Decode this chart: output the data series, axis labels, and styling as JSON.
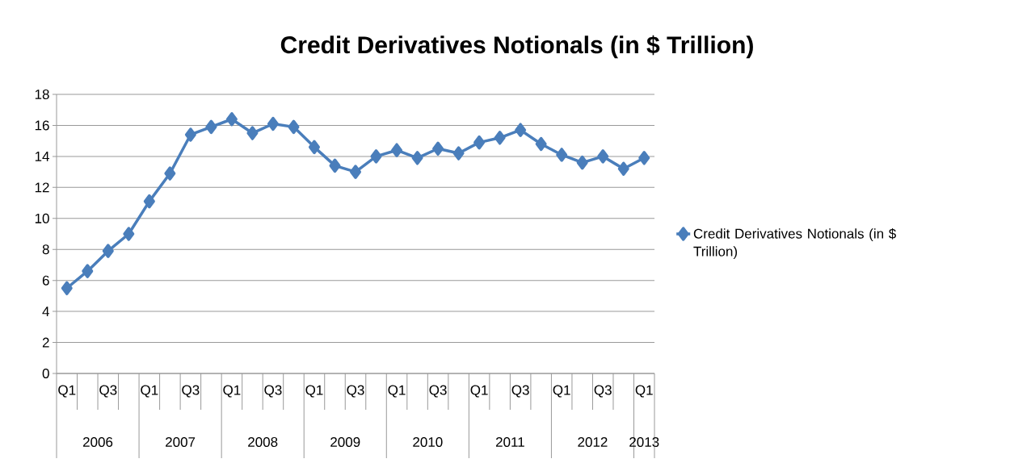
{
  "chart_data": {
    "type": "line",
    "title": "Credit Derivatives Notionals (in $ Trillion)",
    "categories": [
      "Q1",
      null,
      "Q3",
      null,
      "Q1",
      null,
      "Q3",
      null,
      "Q1",
      null,
      "Q3",
      null,
      "Q1",
      null,
      "Q3",
      null,
      "Q1",
      null,
      "Q3",
      null,
      "Q1",
      null,
      "Q3",
      null,
      "Q1",
      null,
      "Q3",
      null,
      "Q1"
    ],
    "series": [
      {
        "name": "Credit Derivatives Notionals (in $ Trillion)",
        "color": "#4a7ebb",
        "values": [
          5.5,
          6.6,
          7.9,
          9.0,
          11.1,
          12.9,
          15.4,
          15.9,
          16.4,
          15.5,
          16.1,
          15.9,
          14.6,
          13.4,
          13.0,
          14.0,
          14.4,
          13.9,
          14.5,
          14.2,
          14.9,
          15.2,
          15.7,
          14.8,
          14.1,
          13.6,
          14.0,
          13.2,
          13.9
        ]
      }
    ],
    "annotations": [
      "2006",
      "2007",
      "2008",
      "2009",
      "2010",
      "2011",
      "2012",
      "2013"
    ],
    "ylim": [
      0,
      18
    ],
    "yticks": [
      0,
      2,
      4,
      6,
      8,
      10,
      12,
      14,
      16,
      18
    ],
    "grid": "y",
    "legend": "right",
    "marker": "diamond",
    "line_style": "solid"
  }
}
